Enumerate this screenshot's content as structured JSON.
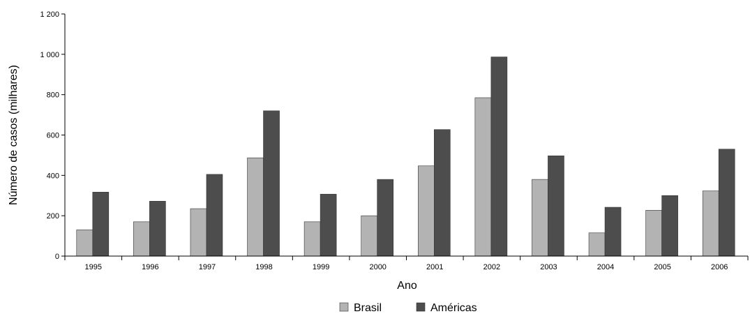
{
  "chart_data": {
    "type": "bar",
    "categories": [
      "1995",
      "1996",
      "1997",
      "1998",
      "1999",
      "2000",
      "2001",
      "2002",
      "2003",
      "2004",
      "2005",
      "2006"
    ],
    "series": [
      {
        "name": "Brasil",
        "color": "#b3b3b3",
        "values": [
          130,
          170,
          235,
          487,
          170,
          200,
          447,
          785,
          380,
          115,
          227,
          323
        ]
      },
      {
        "name": "Américas",
        "color": "#4d4d4d",
        "values": [
          317,
          272,
          405,
          720,
          307,
          380,
          627,
          987,
          497,
          242,
          300,
          530
        ]
      }
    ],
    "xlabel": "Ano",
    "ylabel": "Número de casos (milhares)",
    "ylim": [
      0,
      1200
    ],
    "yticks": [
      0,
      200,
      400,
      600,
      800,
      1000,
      1200
    ],
    "ytick_labels": [
      "0",
      "200",
      "400",
      "600",
      "800",
      "1 000",
      "1 200"
    ],
    "grid": false,
    "legend_position": "bottom-center"
  }
}
